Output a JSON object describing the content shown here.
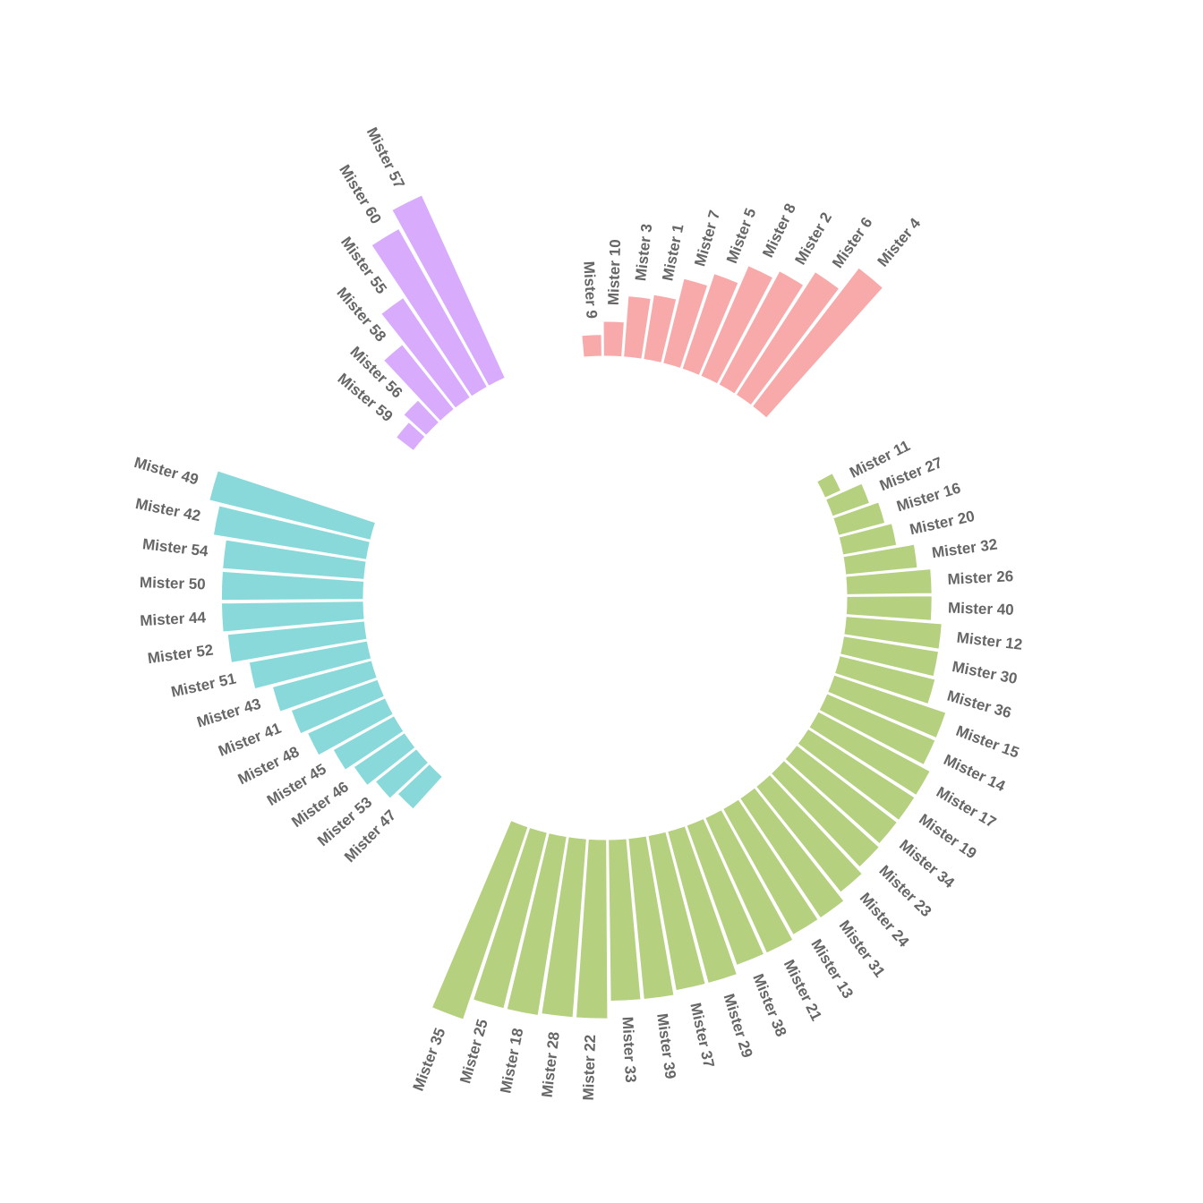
{
  "chart_data": {
    "type": "bar",
    "polar": true,
    "groups": [
      {
        "name": "A",
        "color": "#F8AAAA",
        "bars": [
          {
            "label": "Mister 9",
            "value": 1.0
          },
          {
            "label": "Mister 10",
            "value": 1.6
          },
          {
            "label": "Mister 3",
            "value": 2.8
          },
          {
            "label": "Mister 1",
            "value": 3.0
          },
          {
            "label": "Mister 7",
            "value": 4.0
          },
          {
            "label": "Mister 5",
            "value": 4.6
          },
          {
            "label": "Mister 8",
            "value": 5.5
          },
          {
            "label": "Mister 2",
            "value": 5.9
          },
          {
            "label": "Mister 6",
            "value": 6.7
          },
          {
            "label": "Mister 4",
            "value": 8.0
          }
        ]
      },
      {
        "name": "B",
        "color": "#B5D07F",
        "bars": [
          {
            "label": "Mister 11",
            "value": 0.8
          },
          {
            "label": "Mister 27",
            "value": 1.8
          },
          {
            "label": "Mister 16",
            "value": 2.2
          },
          {
            "label": "Mister 20",
            "value": 2.5
          },
          {
            "label": "Mister 32",
            "value": 3.3
          },
          {
            "label": "Mister 26",
            "value": 3.9
          },
          {
            "label": "Mister 40",
            "value": 3.9
          },
          {
            "label": "Mister 12",
            "value": 4.4
          },
          {
            "label": "Mister 30",
            "value": 4.4
          },
          {
            "label": "Mister 36",
            "value": 4.5
          },
          {
            "label": "Mister 15",
            "value": 5.4
          },
          {
            "label": "Mister 14",
            "value": 5.4
          },
          {
            "label": "Mister 17",
            "value": 5.8
          },
          {
            "label": "Mister 19",
            "value": 5.8
          },
          {
            "label": "Mister 34",
            "value": 5.8
          },
          {
            "label": "Mister 23",
            "value": 5.9
          },
          {
            "label": "Mister 24",
            "value": 6.2
          },
          {
            "label": "Mister 31",
            "value": 6.6
          },
          {
            "label": "Mister 13",
            "value": 6.6
          },
          {
            "label": "Mister 21",
            "value": 6.8
          },
          {
            "label": "Mister 38",
            "value": 6.8
          },
          {
            "label": "Mister 29",
            "value": 7.2
          },
          {
            "label": "Mister 37",
            "value": 7.2
          },
          {
            "label": "Mister 39",
            "value": 7.4
          },
          {
            "label": "Mister 33",
            "value": 7.4
          },
          {
            "label": "Mister 22",
            "value": 8.2
          },
          {
            "label": "Mister 28",
            "value": 8.2
          },
          {
            "label": "Mister 18",
            "value": 8.3
          },
          {
            "label": "Mister 25",
            "value": 8.3
          },
          {
            "label": "Mister 35",
            "value": 9.3
          }
        ]
      },
      {
        "name": "C",
        "color": "#8AD9DA",
        "bars": [
          {
            "label": "Mister 47",
            "value": 2.0
          },
          {
            "label": "Mister 53",
            "value": 2.4
          },
          {
            "label": "Mister 46",
            "value": 2.8
          },
          {
            "label": "Mister 45",
            "value": 3.2
          },
          {
            "label": "Mister 48",
            "value": 3.9
          },
          {
            "label": "Mister 41",
            "value": 4.2
          },
          {
            "label": "Mister 43",
            "value": 4.7
          },
          {
            "label": "Mister 51",
            "value": 5.5
          },
          {
            "label": "Mister 52",
            "value": 6.3
          },
          {
            "label": "Mister 44",
            "value": 6.5
          },
          {
            "label": "Mister 50",
            "value": 6.5
          },
          {
            "label": "Mister 54",
            "value": 6.5
          },
          {
            "label": "Mister 42",
            "value": 7.1
          },
          {
            "label": "Mister 49",
            "value": 7.6
          }
        ]
      },
      {
        "name": "D",
        "color": "#D8ABFC",
        "bars": [
          {
            "label": "Mister 59",
            "value": 1.0
          },
          {
            "label": "Mister 56",
            "value": 1.4
          },
          {
            "label": "Mister 58",
            "value": 3.8
          },
          {
            "label": "Mister 55",
            "value": 5.5
          },
          {
            "label": "Mister 60",
            "value": 8.3
          },
          {
            "label": "Mister 57",
            "value": 9.2
          }
        ]
      }
    ],
    "ylim": [
      0,
      10
    ],
    "empty_slots_between_groups": 4,
    "grid": false,
    "legend": "none"
  }
}
